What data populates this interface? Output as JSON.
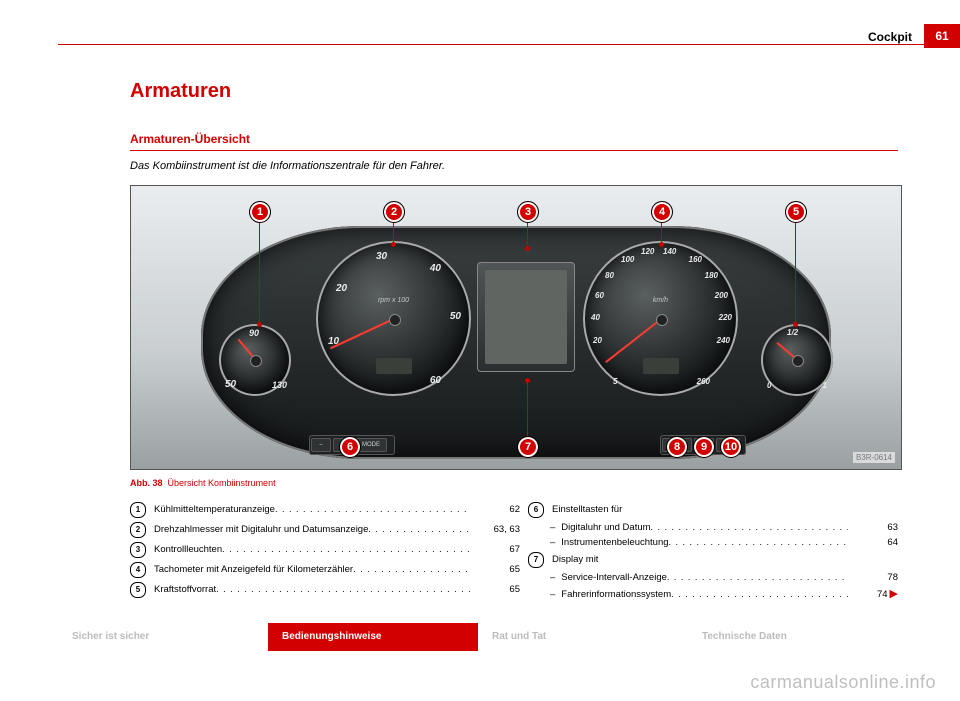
{
  "header": {
    "section": "Cockpit",
    "page": "61"
  },
  "headings": {
    "h1": "Armaturen",
    "h2": "Armaturen-Übersicht",
    "lead": "Das Kombiinstrument ist die Informationszentrale für den Fahrer."
  },
  "figure": {
    "caption_prefix": "Abb. 38",
    "caption": "Übersicht Kombiinstrument",
    "badge": "B3R-0614",
    "rpm_unit": "rpm x 100",
    "kmh_unit": "km/h",
    "rpm_ticks": [
      "10",
      "20",
      "30",
      "40",
      "50",
      "60"
    ],
    "speed_ticks": [
      "5",
      "20",
      "40",
      "60",
      "80",
      "100",
      "120",
      "140",
      "160",
      "180",
      "200",
      "220",
      "240",
      "260"
    ],
    "temp_ticks": [
      "50",
      "90",
      "130"
    ],
    "fuel_ticks": [
      "0",
      "1/2",
      "1"
    ],
    "buttons_left": [
      "–",
      "+",
      "MODE"
    ],
    "buttons_right": [
      "CHECK",
      "",
      "0.0"
    ],
    "callouts": [
      "1",
      "2",
      "3",
      "4",
      "5",
      "6",
      "7",
      "8",
      "9",
      "10"
    ]
  },
  "refs_left": [
    {
      "n": "1",
      "label": "Kühlmitteltemperaturanzeige",
      "page": "62"
    },
    {
      "n": "2",
      "label": "Drehzahlmesser mit Digitaluhr und Datumsanzeige",
      "page": "63, 63"
    },
    {
      "n": "3",
      "label": "Kontrollleuchten",
      "page": "67"
    },
    {
      "n": "4",
      "label": "Tachometer mit Anzeigefeld für Kilometerzähler",
      "page": "65"
    },
    {
      "n": "5",
      "label": "Kraftstoffvorrat",
      "page": "65"
    }
  ],
  "refs_right": [
    {
      "n": "6",
      "label": "Einstelltasten für",
      "page": "",
      "sub": [
        {
          "label": "Digitaluhr und Datum",
          "page": "63"
        },
        {
          "label": "Instrumentenbeleuchtung",
          "page": "64"
        }
      ]
    },
    {
      "n": "7",
      "label": "Display mit",
      "page": "",
      "sub": [
        {
          "label": "Service-Intervall-Anzeige",
          "page": "78"
        },
        {
          "label": "Fahrerinformationssystem",
          "page": "74",
          "continues": true
        }
      ]
    }
  ],
  "footer": {
    "items": [
      {
        "label": "Sicher ist sicher",
        "active": false
      },
      {
        "label": "Bedienungshinweise",
        "active": true
      },
      {
        "label": "Rat und Tat",
        "active": false
      },
      {
        "label": "Technische Daten",
        "active": false
      }
    ]
  },
  "watermark": "carmanualsonline.info",
  "colors": {
    "accent": "#d20000",
    "needle": "#ff3a2e",
    "footer_inactive": "#bcbcbc"
  }
}
